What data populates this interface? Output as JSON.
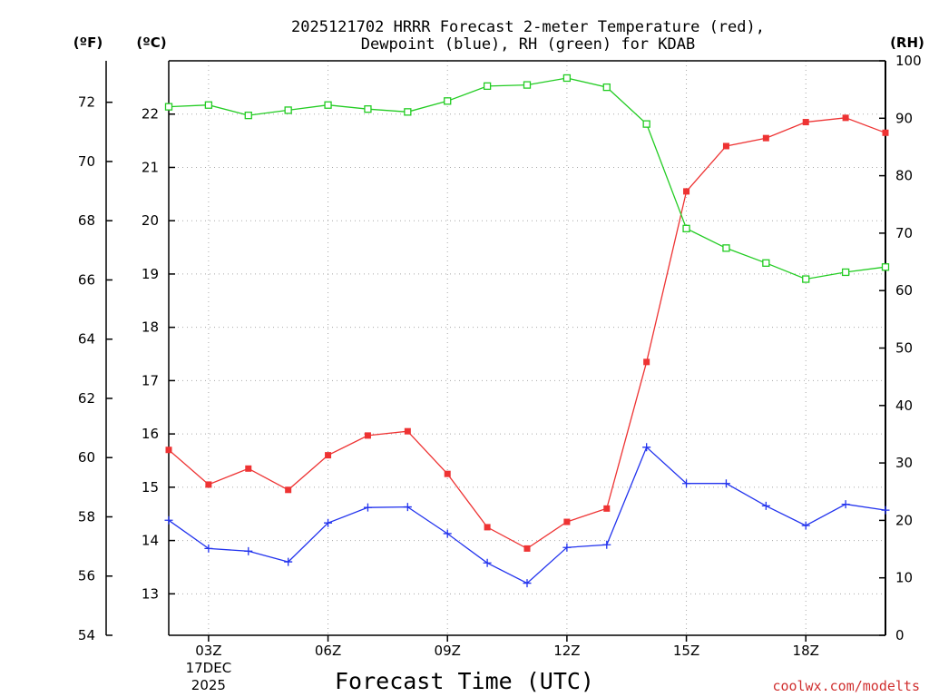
{
  "chart_data": {
    "type": "line",
    "title": "2025121702 HRRR Forecast 2-meter Temperature (red),",
    "subtitle": "Dewpoint (blue), RH (green) for KDAB",
    "xlabel": "Forecast Time (UTC)",
    "units": {
      "left_f": "(ºF)",
      "left_c": "(ºC)",
      "right_rh": "(RH)"
    },
    "x_hours": [
      2,
      3,
      4,
      5,
      6,
      7,
      8,
      9,
      10,
      11,
      12,
      13,
      14,
      15,
      16,
      17,
      18,
      19,
      20
    ],
    "x_range": [
      2,
      20
    ],
    "x_ticks": [
      {
        "hour": 3,
        "label": "03Z",
        "date": "17DEC",
        "year": "2025"
      },
      {
        "hour": 6,
        "label": "06Z"
      },
      {
        "hour": 9,
        "label": "09Z"
      },
      {
        "hour": 12,
        "label": "12Z"
      },
      {
        "hour": 15,
        "label": "15Z"
      },
      {
        "hour": 18,
        "label": "18Z"
      }
    ],
    "celsius_axis": {
      "ticks": [
        13,
        14,
        15,
        16,
        17,
        18,
        19,
        20,
        21,
        22
      ]
    },
    "fahrenheit_axis": {
      "ticks": [
        54,
        56,
        58,
        60,
        62,
        64,
        66,
        68,
        70,
        72
      ],
      "range": [
        54,
        73.4
      ]
    },
    "rh_axis": {
      "ticks": [
        0,
        10,
        20,
        30,
        40,
        50,
        60,
        70,
        80,
        90,
        100
      ],
      "range": [
        0,
        100
      ]
    },
    "series": [
      {
        "name": "2-meter Temperature",
        "unit": "C",
        "color": "#ee3333",
        "marker": "filled-square",
        "values": [
          15.7,
          15.05,
          15.35,
          14.95,
          15.6,
          15.97,
          16.05,
          15.25,
          14.25,
          13.85,
          14.35,
          14.6,
          17.35,
          20.55,
          21.4,
          21.55,
          21.85,
          21.93,
          21.65
        ]
      },
      {
        "name": "Dewpoint",
        "unit": "C",
        "color": "#2233ee",
        "marker": "plus",
        "values": [
          14.38,
          13.85,
          13.8,
          13.6,
          14.33,
          14.62,
          14.63,
          14.13,
          13.58,
          13.2,
          13.87,
          13.92,
          15.75,
          15.07,
          15.07,
          14.65,
          14.28,
          14.68,
          14.57
        ]
      },
      {
        "name": "Relative Humidity",
        "unit": "%",
        "color": "#22cc22",
        "marker": "open-square",
        "values": [
          92.0,
          92.3,
          90.5,
          91.4,
          92.3,
          91.6,
          91.1,
          93.0,
          95.6,
          95.8,
          97.0,
          95.4,
          89.0,
          70.8,
          67.4,
          64.8,
          62.0,
          63.2,
          64.1
        ]
      }
    ],
    "credit": "coolwx.com/modelts"
  }
}
